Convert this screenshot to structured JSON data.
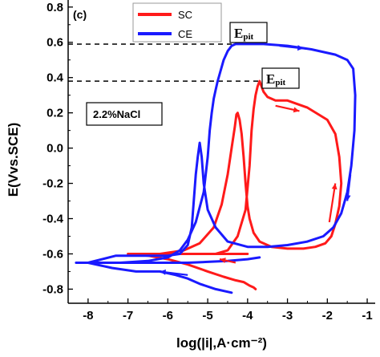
{
  "chart_data": {
    "type": "line",
    "panel_label": "(c)",
    "xlabel": "log(|i|,A·cm⁻²)",
    "ylabel": "E(Vvs.SCE)",
    "xlim": [
      -8.5,
      -0.8
    ],
    "ylim": [
      -0.88,
      0.84
    ],
    "x_ticks": [
      -8,
      -7,
      -6,
      -5,
      -4,
      -3,
      -2,
      -1
    ],
    "x_tick_labels": [
      "-8",
      "-7",
      "-6",
      "-5",
      "-4",
      "-3",
      "-2",
      "-1"
    ],
    "y_ticks": [
      0.8,
      0.6,
      0.4,
      0.2,
      0.0,
      -0.2,
      -0.4,
      -0.6,
      -0.8
    ],
    "y_tick_labels": [
      "0.8",
      "0.6",
      "0.4",
      "0.2",
      "0.0",
      "-0.2",
      "-0.4",
      "-0.6",
      "-0.8"
    ],
    "grid": false,
    "legend_position": "top-center",
    "text_box": "2.2%NaCl",
    "series": [
      {
        "name": "SC",
        "color": "#ff1a1a",
        "x": [
          -4.0,
          -4.3,
          -4.7,
          -5.2,
          -5.7,
          -6.2,
          -6.6,
          -7.0,
          -6.2,
          -5.6,
          -5.2,
          -4.8,
          -4.5,
          -4.25,
          -4.05,
          -3.95,
          -3.9,
          -3.85,
          -3.8,
          -3.75,
          -3.7,
          -3.6,
          -3.5,
          -3.3,
          -3.0,
          -2.5,
          -2.0,
          -1.8,
          -1.7,
          -1.65,
          -1.7,
          -1.8,
          -1.9,
          -2.05,
          -2.3,
          -2.6,
          -3.0,
          -3.4,
          -3.7,
          -3.85,
          -3.95,
          -4.0,
          -4.05,
          -4.1,
          -4.15,
          -4.2,
          -4.25,
          -4.28,
          -4.32,
          -4.4,
          -4.5,
          -4.65,
          -4.85,
          -5.2,
          -5.6,
          -6.2,
          -7.0,
          -6.5,
          -6.0,
          -5.5,
          -5.0,
          -4.6,
          -4.3,
          -4.1,
          -3.95,
          -3.85,
          -3.8
        ],
        "y": [
          -0.6,
          -0.6,
          -0.6,
          -0.6,
          -0.6,
          -0.6,
          -0.6,
          -0.6,
          -0.6,
          -0.6,
          -0.6,
          -0.6,
          -0.58,
          -0.5,
          -0.35,
          -0.1,
          0.1,
          0.22,
          0.3,
          0.35,
          0.38,
          0.32,
          0.29,
          0.27,
          0.27,
          0.23,
          0.16,
          0.08,
          -0.05,
          -0.2,
          -0.33,
          -0.43,
          -0.5,
          -0.54,
          -0.56,
          -0.57,
          -0.57,
          -0.56,
          -0.53,
          -0.48,
          -0.4,
          -0.33,
          -0.2,
          -0.05,
          0.08,
          0.16,
          0.2,
          0.19,
          0.12,
          0.0,
          -0.15,
          -0.32,
          -0.45,
          -0.54,
          -0.58,
          -0.6,
          -0.6,
          -0.61,
          -0.63,
          -0.66,
          -0.7,
          -0.73,
          -0.75,
          -0.76,
          -0.78,
          -0.79,
          -0.8
        ]
      },
      {
        "name": "CE",
        "color": "#1a1aff",
        "x": [
          -3.7,
          -4.0,
          -4.5,
          -5.0,
          -5.5,
          -6.0,
          -6.6,
          -7.3,
          -8.0,
          -8.3,
          -7.8,
          -7.2,
          -6.5,
          -6.0,
          -5.7,
          -5.5,
          -5.3,
          -5.1,
          -5.0,
          -4.95,
          -4.9,
          -4.85,
          -4.8,
          -4.75,
          -4.6,
          -4.5,
          -4.4,
          -4.3,
          -4.0,
          -3.6,
          -3.0,
          -2.4,
          -1.8,
          -1.5,
          -1.35,
          -1.3,
          -1.32,
          -1.4,
          -1.5,
          -1.65,
          -1.85,
          -2.1,
          -2.5,
          -3.0,
          -3.5,
          -4.0,
          -4.5,
          -4.8,
          -5.0,
          -5.1,
          -5.15,
          -5.2,
          -5.25,
          -5.3,
          -5.35,
          -5.4,
          -5.5,
          -5.7,
          -6.0,
          -6.4,
          -6.8,
          -7.3,
          -8.0,
          -7.4,
          -6.8,
          -6.2,
          -5.8,
          -5.5,
          -5.2,
          -4.8,
          -4.4
        ],
        "y": [
          -0.62,
          -0.63,
          -0.64,
          -0.645,
          -0.65,
          -0.65,
          -0.65,
          -0.65,
          -0.65,
          -0.65,
          -0.65,
          -0.65,
          -0.64,
          -0.62,
          -0.58,
          -0.52,
          -0.42,
          -0.25,
          -0.05,
          0.1,
          0.2,
          0.28,
          0.33,
          0.38,
          0.5,
          0.55,
          0.58,
          0.59,
          0.59,
          0.59,
          0.58,
          0.56,
          0.53,
          0.5,
          0.45,
          0.3,
          0.1,
          -0.1,
          -0.25,
          -0.37,
          -0.45,
          -0.5,
          -0.53,
          -0.55,
          -0.56,
          -0.56,
          -0.53,
          -0.45,
          -0.35,
          -0.2,
          -0.05,
          0.03,
          -0.05,
          -0.15,
          -0.3,
          -0.45,
          -0.55,
          -0.6,
          -0.61,
          -0.61,
          -0.61,
          -0.61,
          -0.65,
          -0.68,
          -0.7,
          -0.7,
          -0.72,
          -0.74,
          -0.77,
          -0.8,
          -0.82
        ]
      }
    ],
    "annotations": [
      {
        "label": "Epit",
        "y": 0.59
      },
      {
        "label": "Epit",
        "y": 0.38
      }
    ]
  }
}
